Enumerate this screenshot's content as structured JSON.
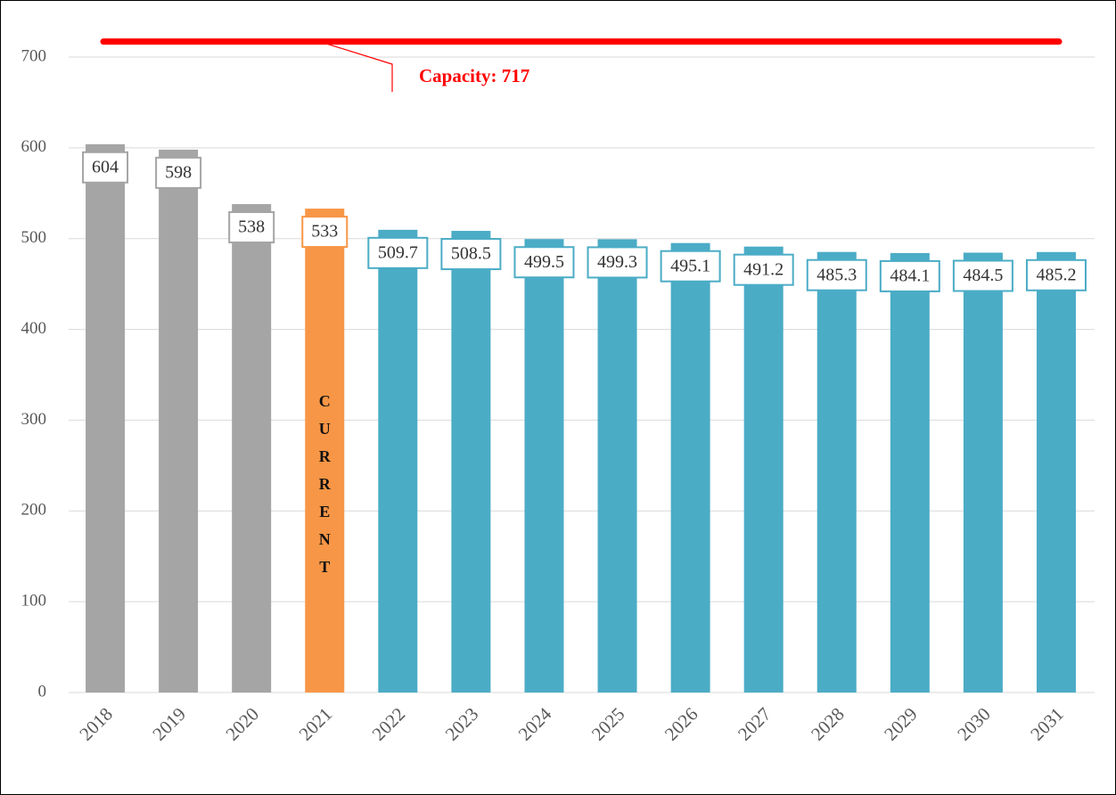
{
  "chart_data": {
    "type": "bar",
    "categories": [
      "2018",
      "2019",
      "2020",
      "2021",
      "2022",
      "2023",
      "2024",
      "2025",
      "2026",
      "2027",
      "2028",
      "2029",
      "2030",
      "2031"
    ],
    "values": [
      604,
      598,
      538,
      533,
      509.7,
      508.5,
      499.5,
      499.3,
      495.1,
      491.2,
      485.3,
      484.1,
      484.5,
      485.2
    ],
    "colors": [
      "#a5a5a5",
      "#a5a5a5",
      "#a5a5a5",
      "#f79646",
      "#4bacc6",
      "#4bacc6",
      "#4bacc6",
      "#4bacc6",
      "#4bacc6",
      "#4bacc6",
      "#4bacc6",
      "#4bacc6",
      "#4bacc6",
      "#4bacc6"
    ],
    "ylim": [
      0,
      700
    ],
    "yticks": [
      0,
      100,
      200,
      300,
      400,
      500,
      600,
      700
    ],
    "grid": true,
    "capacity": {
      "value": 717,
      "label": "Capacity: 717",
      "color": "#ff0000"
    },
    "annotation": {
      "text": "CURRENT",
      "category": "2021"
    }
  }
}
